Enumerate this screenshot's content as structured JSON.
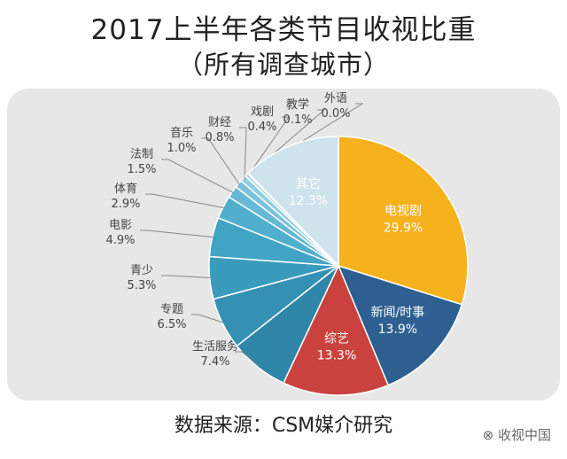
{
  "title": "2017上半年各类节目收视比重",
  "subtitle": "（所有调查城市）",
  "source": "数据来源：CSM媒介研究",
  "watermark": "收视中国",
  "chart_data": {
    "type": "pie",
    "unit": "%",
    "slices": [
      {
        "label": "电视剧",
        "value": 29.9,
        "value_text": "29.9%",
        "color": "#f6b21c",
        "label_pos": "inside"
      },
      {
        "label": "新闻/时事",
        "value": 13.9,
        "value_text": "13.9%",
        "color": "#2e5f91",
        "label_pos": "inside"
      },
      {
        "label": "综艺",
        "value": 13.3,
        "value_text": "13.3%",
        "color": "#c9423e",
        "label_pos": "inside"
      },
      {
        "label": "生活服务",
        "value": 7.4,
        "value_text": "7.4%",
        "color": "#2f86a8",
        "label_pos": "outside"
      },
      {
        "label": "专题",
        "value": 6.5,
        "value_text": "6.5%",
        "color": "#3591b3",
        "label_pos": "outside"
      },
      {
        "label": "青少",
        "value": 5.3,
        "value_text": "5.3%",
        "color": "#3a9bbd",
        "label_pos": "outside"
      },
      {
        "label": "电影",
        "value": 4.9,
        "value_text": "4.9%",
        "color": "#42a4c5",
        "label_pos": "outside"
      },
      {
        "label": "体育",
        "value": 2.9,
        "value_text": "2.9%",
        "color": "#52aecd",
        "label_pos": "outside"
      },
      {
        "label": "法制",
        "value": 1.5,
        "value_text": "1.5%",
        "color": "#66b8d4",
        "label_pos": "outside"
      },
      {
        "label": "音乐",
        "value": 1.0,
        "value_text": "1.0%",
        "color": "#7cc2db",
        "label_pos": "outside"
      },
      {
        "label": "财经",
        "value": 0.8,
        "value_text": "0.8%",
        "color": "#93cde1",
        "label_pos": "outside"
      },
      {
        "label": "戏剧",
        "value": 0.4,
        "value_text": "0.4%",
        "color": "#a8d6e6",
        "label_pos": "outside"
      },
      {
        "label": "教学",
        "value": 0.1,
        "value_text": "0.1%",
        "color": "#bcdeea",
        "label_pos": "outside"
      },
      {
        "label": "外语",
        "value": 0.0,
        "value_text": "0.0%",
        "color": "#cfe5ee",
        "label_pos": "outside"
      },
      {
        "label": "其它",
        "value": 12.3,
        "value_text": "12.3%",
        "color": "#cfe3ec",
        "label_pos": "inside"
      }
    ]
  }
}
